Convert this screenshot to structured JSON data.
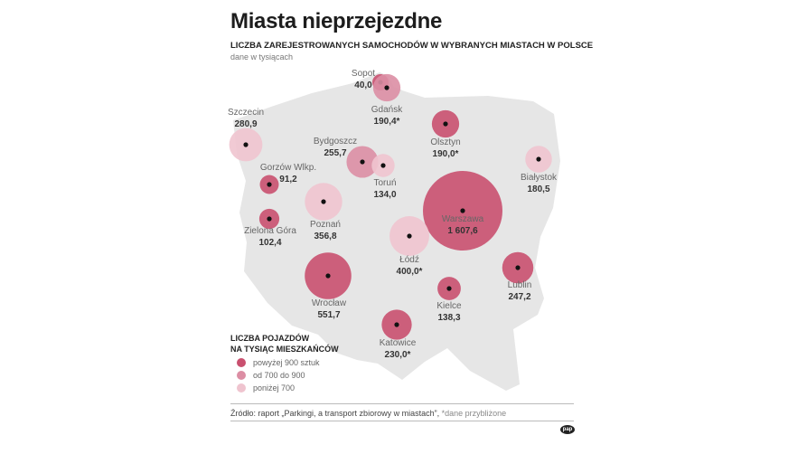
{
  "title": "Miasta nieprzejezdne",
  "subtitle": "LICZBA ZAREJESTROWANYCH SAMOCHODÓW W WYBRANYCH MIASTACH W POLSCE",
  "unit_note": "dane w tysiącach",
  "colors": {
    "high": "#c9506f",
    "mid": "#dc8ea4",
    "low": "#efc4cf",
    "map": "#e6e6e6"
  },
  "cities": [
    {
      "name": "Sopot",
      "value": "40,0",
      "cars_thousands": 40.0,
      "category": "high"
    },
    {
      "name": "Gdańsk",
      "value": "190,4*",
      "cars_thousands": 190.4,
      "category": "mid"
    },
    {
      "name": "Szczecin",
      "value": "280,9",
      "cars_thousands": 280.9,
      "category": "low"
    },
    {
      "name": "Olsztyn",
      "value": "190,0*",
      "cars_thousands": 190.0,
      "category": "high"
    },
    {
      "name": "Bydgoszcz",
      "value": "255,7",
      "cars_thousands": 255.7,
      "category": "mid"
    },
    {
      "name": "Toruń",
      "value": "134,0",
      "cars_thousands": 134.0,
      "category": "low"
    },
    {
      "name": "Białystok",
      "value": "180,5",
      "cars_thousands": 180.5,
      "category": "low"
    },
    {
      "name": "Gorzów Wlkp.",
      "value": "91,2",
      "cars_thousands": 91.2,
      "category": "high"
    },
    {
      "name": "Poznań",
      "value": "356,8",
      "cars_thousands": 356.8,
      "category": "low"
    },
    {
      "name": "Zielona Góra",
      "value": "102,4",
      "cars_thousands": 102.4,
      "category": "high"
    },
    {
      "name": "Warszawa",
      "value": "1 607,6",
      "cars_thousands": 1607.6,
      "category": "high"
    },
    {
      "name": "Łódź",
      "value": "400,0*",
      "cars_thousands": 400.0,
      "category": "low"
    },
    {
      "name": "Lublin",
      "value": "247,2",
      "cars_thousands": 247.2,
      "category": "high"
    },
    {
      "name": "Kielce",
      "value": "138,3",
      "cars_thousands": 138.3,
      "category": "high"
    },
    {
      "name": "Wrocław",
      "value": "551,7",
      "cars_thousands": 551.7,
      "category": "high"
    },
    {
      "name": "Katowice",
      "value": "230,0*",
      "cars_thousands": 230.0,
      "category": "high"
    }
  ],
  "legend": {
    "title_line1": "LICZBA POJAZDÓW",
    "title_line2": "NA TYSIĄC MIESZKAŃCÓW",
    "items": [
      {
        "label": "powyżej 900 sztuk",
        "color": "#c9506f"
      },
      {
        "label": "od 700 do 900",
        "color": "#dc8ea4"
      },
      {
        "label": "poniżej 700",
        "color": "#efc4cf"
      }
    ]
  },
  "source": {
    "text": "Źródło: raport „Parkingi, a transport zbiorowy w miastach”,",
    "note": "*dane przybliżone"
  },
  "logo": "pap"
}
